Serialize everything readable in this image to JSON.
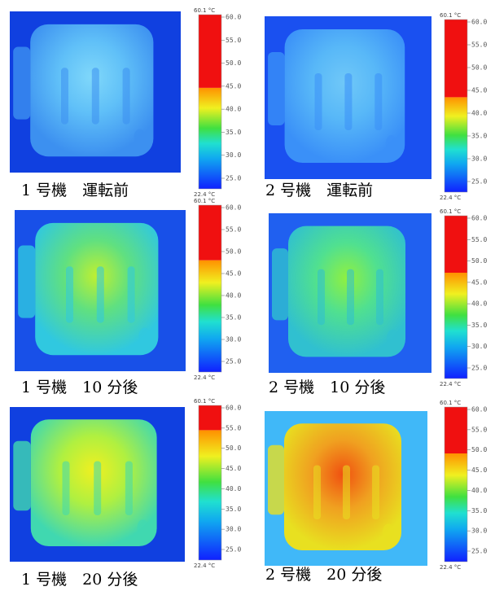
{
  "colorbar": {
    "max_label": "60.1 °C",
    "min_label": "22.4 °C",
    "ticks": [
      "60.0",
      "55.0",
      "50.0",
      "45.0",
      "40.0",
      "35.0",
      "30.0",
      "25.0"
    ]
  },
  "panels": [
    {
      "caption": "1 号機　運転前"
    },
    {
      "caption": "2 号機　運転前"
    },
    {
      "caption": "1 号機　10 分後"
    },
    {
      "caption": "2 号機　10 分後"
    },
    {
      "caption": "1 号機　20 分後"
    },
    {
      "caption": "2 号機　20 分後"
    }
  ]
}
